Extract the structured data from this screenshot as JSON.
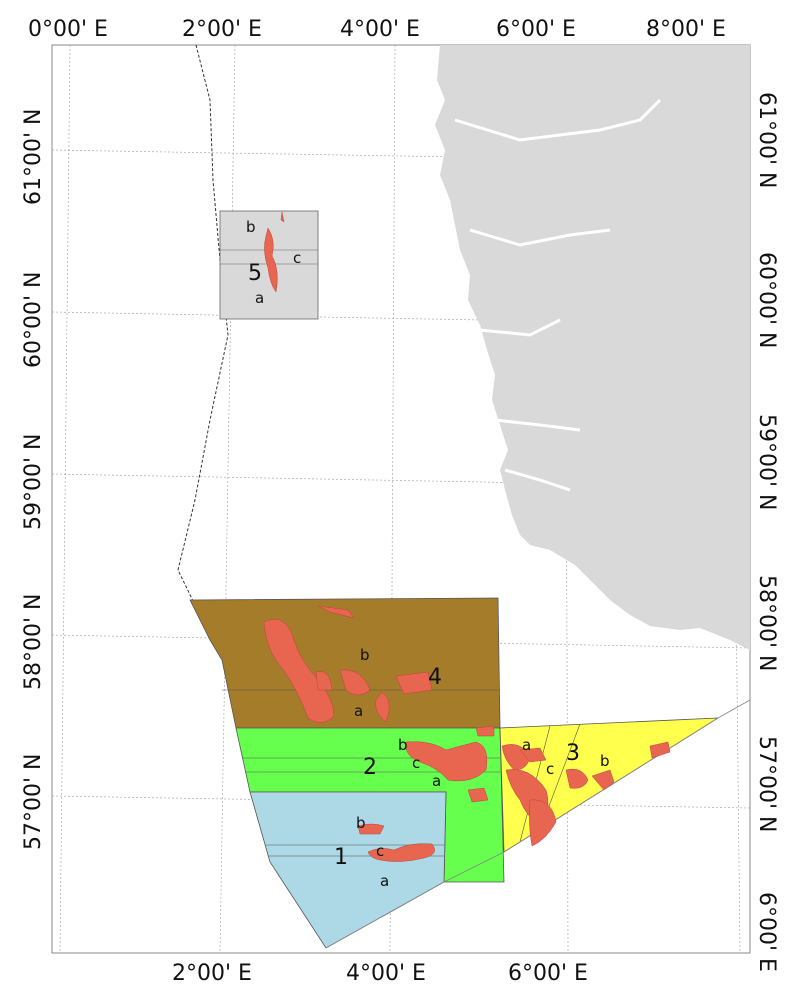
{
  "map": {
    "colors": {
      "land": "#d9d9d9",
      "zone1": "#add8e6",
      "zone2": "#66ff4d",
      "zone3": "#ffff4d",
      "zone4": "#a57c2a",
      "zone5": "#d9d9d9",
      "deposit": "#e8664f"
    },
    "lon_labels_top": [
      "0°00' E",
      "2°00' E",
      "4°00' E",
      "6°00' E",
      "8°00' E"
    ],
    "lon_labels_bottom": [
      "2°00' E",
      "4°00' E",
      "6°00' E"
    ],
    "lat_labels_left": [
      "61°00' N",
      "60°00' N",
      "59°00' N",
      "58°00' N",
      "57°00' N"
    ],
    "lat_labels_right": [
      "61°00' N",
      "60°00' N",
      "59°00' N",
      "58°00' N",
      "57°00' N",
      "6°00' E"
    ],
    "zones": [
      {
        "id": "1",
        "subareas": [
          "a",
          "b",
          "c"
        ]
      },
      {
        "id": "2",
        "subareas": [
          "a",
          "b",
          "c"
        ]
      },
      {
        "id": "3",
        "subareas": [
          "a",
          "b",
          "c"
        ]
      },
      {
        "id": "4",
        "subareas": [
          "a",
          "b"
        ]
      },
      {
        "id": "5",
        "subareas": [
          "a",
          "b",
          "c"
        ]
      }
    ]
  }
}
